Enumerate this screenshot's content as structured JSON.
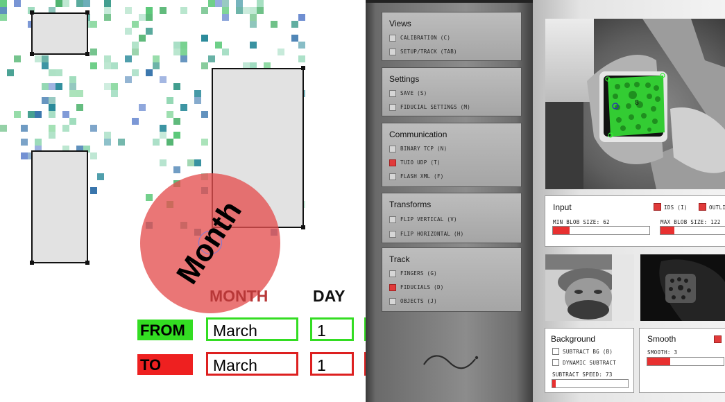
{
  "tabletop": {
    "marker_label": "Month",
    "columns": {
      "month": "MONTH",
      "day": "DAY"
    },
    "from_row": {
      "tag": "FROM",
      "month": "March",
      "day": "1"
    },
    "to_row": {
      "tag": "TO",
      "month": "March",
      "day": "1"
    },
    "colors": {
      "from": "#33dd22",
      "to": "#ee2020",
      "marker": "#e45050"
    }
  },
  "menu": {
    "groups": [
      {
        "title": "Views",
        "options": [
          {
            "label": "CALIBRATION (C)",
            "checked": false
          },
          {
            "label": "SETUP/TRACK (TAB)",
            "checked": false
          }
        ]
      },
      {
        "title": "Settings",
        "options": [
          {
            "label": "SAVE (S)",
            "checked": false
          },
          {
            "label": "FIDUCIAL SETTINGS (M)",
            "checked": false
          }
        ]
      },
      {
        "title": "Communication",
        "options": [
          {
            "label": "BINARY TCP (N)",
            "checked": false
          },
          {
            "label": "TUIO UDP (T)",
            "checked": true
          },
          {
            "label": "FLASH XML (F)",
            "checked": false
          }
        ]
      },
      {
        "title": "Transforms",
        "options": [
          {
            "label": "FLIP VERTICAL (V)",
            "checked": false
          },
          {
            "label": "FLIP HORIZONTAL (H)",
            "checked": false
          }
        ]
      },
      {
        "title": "Track",
        "options": [
          {
            "label": "FINGERS (G)",
            "checked": false
          },
          {
            "label": "FIDUCIALS (D)",
            "checked": true
          },
          {
            "label": "OBJECTS (J)",
            "checked": false
          }
        ]
      }
    ]
  },
  "camera": {
    "fiducial_id": "8",
    "input": {
      "title": "Input",
      "ids_label": "IDS (I)",
      "outlines_label": "OUTLI",
      "min_blob_label": "MIN BLOB SIZE: 62",
      "max_blob_label": "MAX BLOB SIZE: 122",
      "min_blob_fill": 0.17,
      "max_blob_fill": 0.2
    },
    "background": {
      "title": "Background",
      "subtract_bg_label": "SUBTRACT BG (B)",
      "dynamic_subtract_label": "DYNAMIC SUBTRACT",
      "subtract_speed_label": "SUBTRACT SPEED: 73",
      "subtract_speed_fill": 0.05
    },
    "smooth": {
      "title": "Smooth",
      "smooth_label": "SMOOTH: 3",
      "smooth_fill": 0.3
    }
  }
}
